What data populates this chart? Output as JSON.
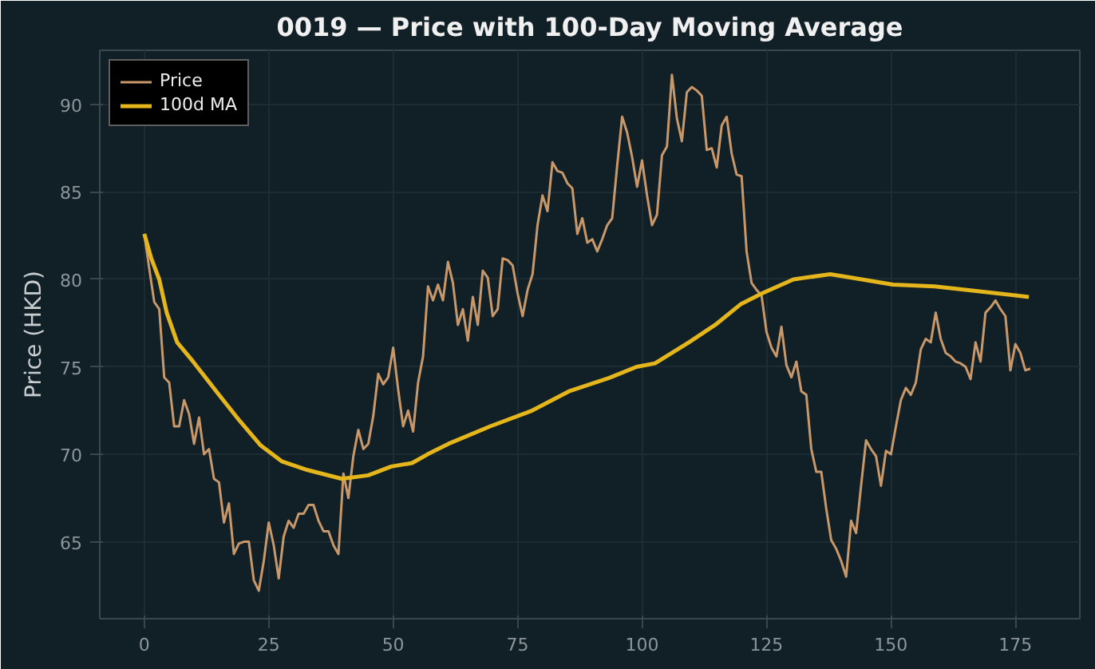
{
  "chart_data": {
    "type": "line",
    "title": "0019 — Price with 100-Day Moving Average",
    "ylabel": "Price (HKD)",
    "xlim": [
      -8.95,
      187.95
    ],
    "xticks": [
      0,
      25,
      50,
      75,
      100,
      125,
      150,
      175
    ],
    "ylim": [
      60.6,
      93.1
    ],
    "yticks": [
      65,
      70,
      75,
      80,
      85,
      90
    ],
    "grid": true,
    "legend": "top left",
    "line_style": "solid",
    "marker": "none",
    "series": [
      {
        "name": "Price",
        "color": "#c8986a",
        "x": [
          0,
          1,
          2,
          3,
          4,
          5,
          6,
          7,
          8,
          9,
          10,
          11,
          12,
          13,
          14,
          15,
          16,
          17,
          18,
          19,
          20,
          21,
          22,
          23,
          24,
          25,
          26,
          27,
          28,
          29,
          30,
          31,
          32,
          33,
          34,
          35,
          36,
          37,
          38,
          39,
          40,
          41,
          42,
          43,
          44,
          45,
          46,
          47,
          48,
          49,
          50,
          51,
          52,
          53,
          54,
          55,
          56,
          57,
          58,
          59,
          60,
          61,
          62,
          63,
          64,
          65,
          66,
          67,
          68,
          69,
          70,
          71,
          72,
          73,
          74,
          75,
          76,
          77,
          78,
          79,
          80,
          81,
          82,
          83,
          84,
          85,
          86,
          87,
          88,
          89,
          90,
          91,
          92,
          93,
          94,
          95,
          96,
          97,
          98,
          99,
          100,
          101,
          102,
          103,
          104,
          105,
          106,
          107,
          108,
          109,
          110,
          111,
          112,
          113,
          114,
          115,
          116,
          117,
          118,
          119,
          120,
          121,
          122,
          123,
          124,
          125,
          126,
          127,
          128,
          129,
          130,
          131,
          132,
          133,
          134,
          135,
          136,
          137,
          138,
          139,
          140,
          141,
          142,
          143,
          144,
          145,
          146,
          147,
          148,
          149,
          150,
          151,
          152,
          153,
          154,
          155,
          156,
          157,
          158,
          159,
          160,
          161,
          162,
          163,
          164,
          165,
          166,
          167,
          168,
          169,
          170,
          171,
          172,
          173,
          174,
          175,
          176,
          177,
          178
        ],
        "values": [
          82.6,
          80.6,
          78.7,
          78.3,
          74.4,
          74.1,
          71.6,
          71.6,
          73.1,
          72.3,
          70.6,
          72.1,
          70.0,
          70.3,
          68.6,
          68.4,
          66.1,
          67.2,
          64.3,
          64.9,
          65.0,
          65.0,
          62.8,
          62.2,
          63.9,
          66.1,
          64.8,
          62.9,
          65.3,
          66.2,
          65.8,
          66.6,
          66.6,
          67.1,
          67.1,
          66.2,
          65.6,
          65.6,
          64.8,
          64.3,
          68.9,
          67.5,
          69.9,
          71.4,
          70.3,
          70.6,
          72.2,
          74.6,
          74.0,
          74.4,
          76.1,
          73.7,
          71.6,
          72.5,
          71.3,
          74.1,
          75.6,
          79.6,
          78.8,
          79.7,
          78.8,
          81.0,
          79.8,
          77.4,
          78.3,
          76.5,
          79.0,
          77.4,
          80.5,
          80.1,
          77.9,
          78.3,
          81.2,
          81.1,
          80.8,
          79.2,
          77.9,
          79.4,
          80.3,
          83.1,
          84.8,
          83.9,
          86.7,
          86.2,
          86.1,
          85.5,
          85.2,
          82.6,
          83.5,
          82.1,
          82.3,
          81.6,
          82.3,
          83.1,
          83.5,
          86.5,
          89.3,
          88.4,
          87.0,
          85.3,
          86.8,
          84.8,
          83.1,
          83.7,
          87.1,
          87.6,
          91.7,
          89.2,
          87.9,
          90.7,
          91.0,
          90.8,
          90.5,
          87.4,
          87.5,
          86.4,
          88.8,
          89.3,
          87.2,
          86.0,
          85.9,
          81.6,
          79.8,
          79.4,
          79.1,
          77.0,
          76.1,
          75.6,
          77.3,
          75.1,
          74.4,
          75.3,
          73.6,
          73.4,
          70.3,
          69.0,
          69.0,
          66.9,
          65.1,
          64.6,
          63.9,
          63.0,
          66.2,
          65.5,
          68.2,
          70.8,
          70.3,
          69.9,
          68.2,
          70.2,
          70.0,
          71.6,
          73.1,
          73.8,
          73.4,
          74.1,
          76.0,
          76.6,
          76.4,
          78.1,
          76.6,
          75.8,
          75.6,
          75.3,
          75.2,
          75.0,
          74.3,
          76.4,
          75.3,
          78.1,
          78.4,
          78.8,
          78.3,
          77.9,
          74.8,
          76.3,
          75.8,
          74.8,
          74.9
        ]
      },
      {
        "name": "100d MA",
        "color": "#e4b61c",
        "x": [
          0,
          1.4,
          3,
          4.5,
          6.6,
          9.8,
          15,
          19.2,
          23.4,
          27.6,
          32.8,
          39.7,
          45,
          49.6,
          53.8,
          56.9,
          61.1,
          69.5,
          77.9,
          85.3,
          93.7,
          98.9,
          102.6,
          109.4,
          114.7,
          119.9,
          124.1,
          130.4,
          137.8,
          142,
          150.4,
          158.8,
          168.2,
          177.7
        ],
        "values": [
          82.6,
          81.2,
          80.0,
          78.1,
          76.4,
          75.3,
          73.4,
          71.9,
          70.5,
          69.6,
          69.1,
          68.6,
          68.8,
          69.3,
          69.5,
          70.0,
          70.6,
          71.6,
          72.5,
          73.6,
          74.4,
          75.0,
          75.2,
          76.4,
          77.4,
          78.6,
          79.2,
          80.0,
          80.3,
          80.1,
          79.7,
          79.6,
          79.3,
          79.0
        ]
      }
    ]
  }
}
